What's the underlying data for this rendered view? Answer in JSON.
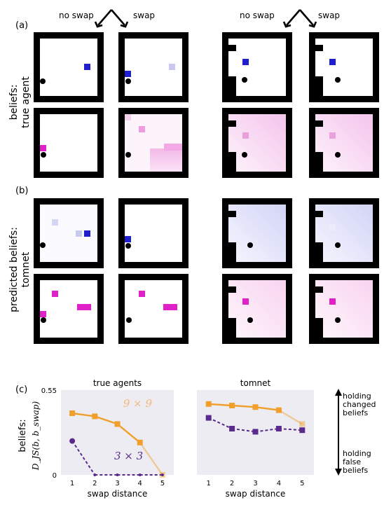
{
  "colors": {
    "blue": "#1f1fd0",
    "magenta": "#e020c8",
    "agent": "#000000",
    "wall": "#000000",
    "orange": "#f0a02a",
    "purple": "#5a2a8c",
    "panel_bg": "#ececf2"
  },
  "panel_a": {
    "label": "(a)",
    "left_header_no_swap": "no swap",
    "left_header_swap": "swap",
    "right_header_no_swap": "no swap",
    "right_header_swap": "swap"
  },
  "panel_b": {
    "label": "(b)"
  },
  "panel_c": {
    "label": "(c)"
  },
  "ylabel_a": {
    "line1": "beliefs:",
    "line2": "true agent"
  },
  "ylabel_b": {
    "line1": "predicted beliefs:",
    "line2": "tomnet"
  },
  "ylabel_c": {
    "line1": "beliefs:",
    "line2": "D_JS(b, b_swap)"
  },
  "arrow_notes": {
    "top_line1": "holding",
    "top_line2": "changed",
    "top_line3": "beliefs",
    "bottom_line1": "holding",
    "bottom_line2": "false",
    "bottom_line3": "beliefs"
  },
  "chart_data": [
    {
      "type": "line",
      "title": "true agents",
      "xlabel": "swap distance",
      "ylabel": "beliefs: D_JS(b, b_swap)",
      "x": [
        1,
        2,
        3,
        4,
        5
      ],
      "ylim": [
        0,
        0.55
      ],
      "yticks": [
        "0",
        "0.55"
      ],
      "series": [
        {
          "name": "9 × 9",
          "color": "#f0a02a",
          "values": [
            0.4,
            0.38,
            0.33,
            0.21,
            0.0
          ]
        },
        {
          "name": "3 × 3",
          "color": "#5a2a8c",
          "values": [
            0.22,
            0.0,
            0.0,
            0.0,
            0.0
          ]
        }
      ]
    },
    {
      "type": "line",
      "title": "tomnet",
      "xlabel": "swap distance",
      "x": [
        1,
        2,
        3,
        4,
        5
      ],
      "ylim": [
        0,
        0.55
      ],
      "series": [
        {
          "color": "#f0a02a",
          "values": [
            0.46,
            0.45,
            0.44,
            0.42,
            0.33
          ]
        },
        {
          "color": "#5a2a8c",
          "values": [
            0.37,
            0.3,
            0.28,
            0.3,
            0.29
          ]
        }
      ]
    }
  ]
}
